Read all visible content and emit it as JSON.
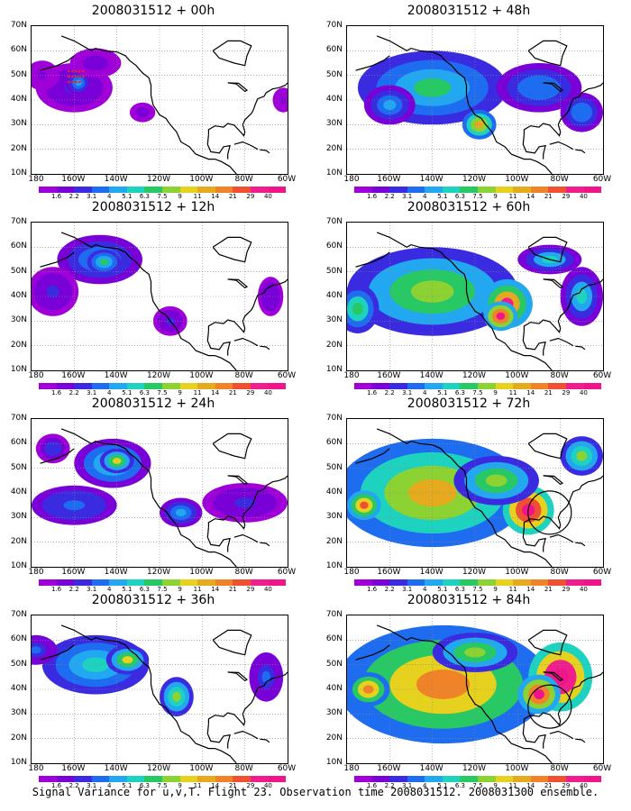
{
  "panels": [
    {
      "id": "p00",
      "title": "2008031512 + 00h",
      "intensity": 0.35
    },
    {
      "id": "p12",
      "title": "2008031512 + 12h",
      "intensity": 0.55
    },
    {
      "id": "p24",
      "title": "2008031512 + 24h",
      "intensity": 0.7
    },
    {
      "id": "p36",
      "title": "2008031512 + 36h",
      "intensity": 0.8
    },
    {
      "id": "p48",
      "title": "2008031512 + 48h",
      "intensity": 0.85
    },
    {
      "id": "p60",
      "title": "2008031512 + 60h",
      "intensity": 1.0
    },
    {
      "id": "p72",
      "title": "2008031512 + 72h",
      "intensity": 1.1
    },
    {
      "id": "p84",
      "title": "2008031512 + 84h",
      "intensity": 1.2
    }
  ],
  "lat_labels": [
    "70N",
    "60N",
    "50N",
    "40N",
    "30N",
    "20N",
    "10N"
  ],
  "lon_labels": [
    "180",
    "160W",
    "140W",
    "120W",
    "100W",
    "80W",
    "60W"
  ],
  "colorbar": {
    "labels": [
      "1.6",
      "2.2",
      "3.1",
      "4",
      "5.1",
      "6.3",
      "7.5",
      "9",
      "11",
      "14",
      "21",
      "29",
      "40"
    ],
    "colors": [
      "#a000d8",
      "#7a00d8",
      "#3a2be0",
      "#1e6cf0",
      "#22a8f0",
      "#1ed2c0",
      "#28c864",
      "#8cd232",
      "#e6d21e",
      "#e6aa1e",
      "#f08228",
      "#f05032",
      "#f01e8c",
      "#f0148c"
    ]
  },
  "caption": "Signal Variance for u,v,T. Flight 23. Observation time 2008031512. 2008031300 ensemble."
}
